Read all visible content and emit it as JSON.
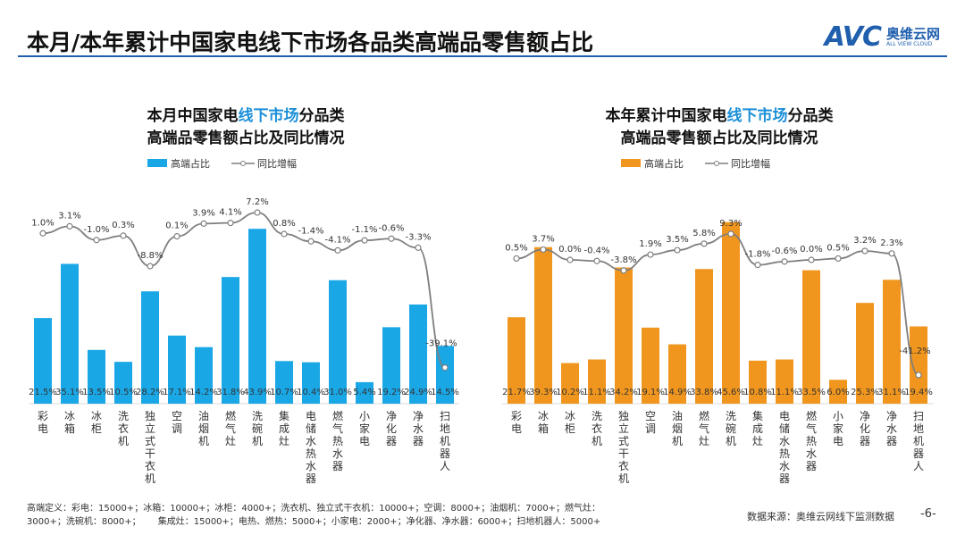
{
  "header": {
    "title": "本月/本年累计中国家电线下市场各品类高端品零售额占比",
    "logo_text": "AVC",
    "logo_cn": "奥维云网",
    "logo_en": "ALL VIEW CLOUD"
  },
  "chart_data": [
    {
      "type": "bar",
      "title_line1_a": "本月中国家电",
      "title_line1_b": "线下市场",
      "title_line1_c": "分品类",
      "title_line2": "高端品零售额占比及同比情况",
      "legend": [
        "高端占比",
        "同比增幅"
      ],
      "legend_placement": "top",
      "categories": [
        "彩电",
        "冰箱",
        "冰柜",
        "洗衣机",
        "独立式干衣机",
        "空调",
        "油烟机",
        "燃气灶",
        "洗碗机",
        "集成灶",
        "电储水热水器",
        "燃气热水器",
        "小家电",
        "净化器",
        "净水器",
        "扫地机器人"
      ],
      "series": [
        {
          "name": "高端占比",
          "type": "bar",
          "color": "#1aa7e6",
          "values": [
            21.5,
            35.1,
            13.5,
            10.5,
            28.2,
            17.1,
            14.2,
            31.8,
            43.9,
            10.7,
            10.4,
            31.0,
            5.4,
            19.2,
            24.9,
            14.5
          ]
        },
        {
          "name": "同比增幅",
          "type": "line",
          "color": "#7f7f7f",
          "values": [
            1.0,
            3.1,
            -1.0,
            0.3,
            -8.8,
            0.1,
            3.9,
            4.1,
            7.2,
            0.8,
            -1.4,
            -4.1,
            -1.1,
            -0.6,
            -3.3,
            -39.1
          ]
        }
      ]
    },
    {
      "type": "bar",
      "title_line1_a": "本年累计中国家电",
      "title_line1_b": "线下市场",
      "title_line1_c": "分品类",
      "title_line2": "高端品零售额占比及同比情况",
      "legend": [
        "高端占比",
        "同比增幅"
      ],
      "legend_placement": "top",
      "categories": [
        "彩电",
        "冰箱",
        "冰柜",
        "洗衣机",
        "独立式干衣机",
        "空调",
        "油烟机",
        "燃气灶",
        "洗碗机",
        "集成灶",
        "电储水热水器",
        "燃气热水器",
        "小家电",
        "净化器",
        "净水器",
        "扫地机器人"
      ],
      "series": [
        {
          "name": "高端占比",
          "type": "bar",
          "color": "#f0961e",
          "values": [
            21.7,
            39.3,
            10.2,
            11.1,
            34.2,
            19.1,
            14.9,
            33.8,
            45.6,
            10.8,
            11.1,
            33.5,
            6.0,
            25.3,
            31.1,
            19.4
          ]
        },
        {
          "name": "同比增幅",
          "type": "line",
          "color": "#7f7f7f",
          "values": [
            0.5,
            3.7,
            0.0,
            -0.4,
            -3.8,
            1.9,
            3.5,
            5.8,
            9.3,
            -1.8,
            -0.6,
            0.0,
            0.5,
            3.2,
            2.3,
            -41.2
          ]
        }
      ]
    }
  ],
  "footer": {
    "definition_line1": "高端定义：彩电：15000+；冰箱：10000+；冰柜：4000+；洗衣机、独立式干衣机：10000+；空调：8000+；油烟机：7000+；燃气灶：",
    "definition_line2": "3000+；洗碗机：8000+；      集成灶：15000+；电热、燃热：5000+；小家电：2000+；净化器、净水器：6000+；扫地机器人：5000+",
    "source": "数据来源：奥维云网线下监测数据",
    "page": "-6-"
  }
}
